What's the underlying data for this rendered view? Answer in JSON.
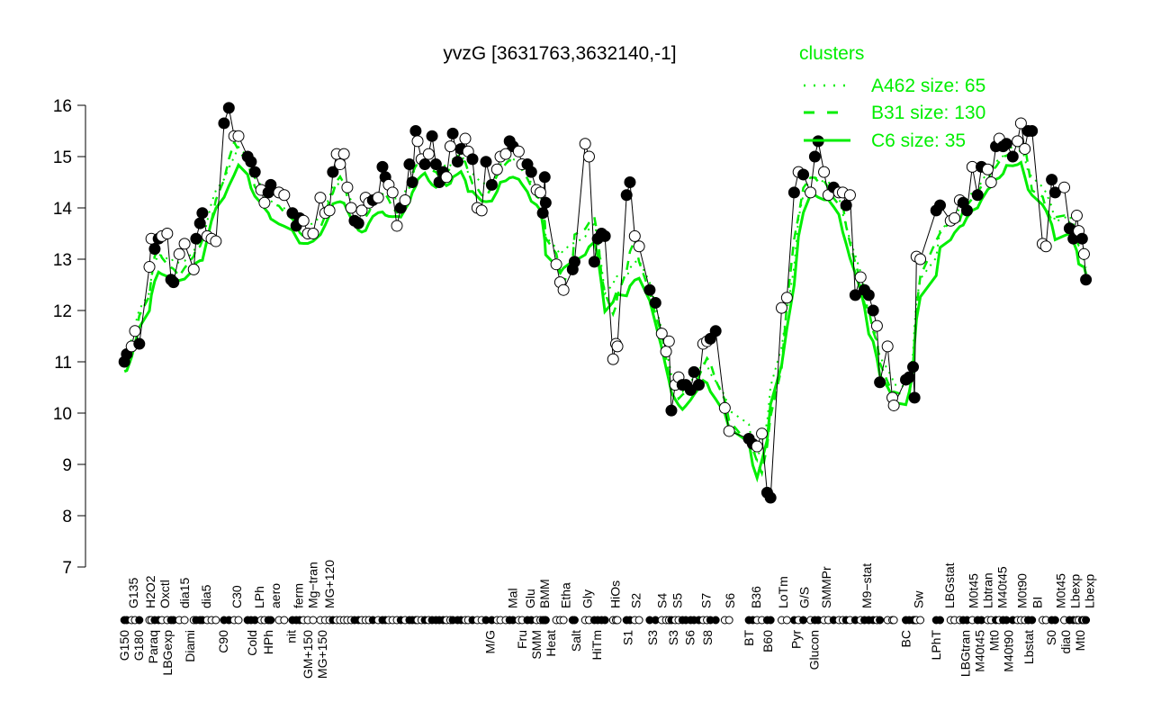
{
  "chart_data": {
    "type": "line",
    "title": "yvzG [3631763,3632140,-1]",
    "xlabel": "",
    "ylabel": "",
    "ylim": [
      7,
      16
    ],
    "xlim": [
      0,
      201
    ],
    "yticks": [
      7,
      8,
      9,
      10,
      11,
      12,
      13,
      14,
      15,
      16
    ],
    "legend": {
      "title": "clusters",
      "placement": "top-right",
      "entries": [
        {
          "name": "A462 size: 65",
          "style": "dotted"
        },
        {
          "name": "B31 size: 130",
          "style": "dashed"
        },
        {
          "name": "C6 size: 35",
          "style": "solid"
        }
      ]
    },
    "colors": {
      "cluster": "#00ee00",
      "point_fill": "#000000",
      "point_open": "#ffffff"
    },
    "points": [
      [
        0.6,
        11.0,
        1
      ],
      [
        1.1,
        11.15,
        1
      ],
      [
        2.1,
        11.3,
        0
      ],
      [
        2.8,
        11.6,
        0
      ],
      [
        3.7,
        11.35,
        1
      ],
      [
        5.8,
        12.85,
        0
      ],
      [
        6.2,
        13.4,
        0
      ],
      [
        6.9,
        13.2,
        1
      ],
      [
        7.7,
        13.4,
        1
      ],
      [
        8.4,
        13.45,
        0
      ],
      [
        9.5,
        13.5,
        0
      ],
      [
        10.3,
        12.6,
        1
      ],
      [
        10.8,
        12.55,
        1
      ],
      [
        12.0,
        13.1,
        0
      ],
      [
        13.1,
        13.3,
        0
      ],
      [
        15.0,
        12.8,
        0
      ],
      [
        15.5,
        13.4,
        1
      ],
      [
        16.3,
        13.7,
        1
      ],
      [
        16.8,
        13.9,
        1
      ],
      [
        17.8,
        13.45,
        0
      ],
      [
        18.7,
        13.4,
        0
      ],
      [
        19.6,
        13.35,
        0
      ],
      [
        21.3,
        15.65,
        1
      ],
      [
        22.3,
        15.95,
        1
      ],
      [
        23.4,
        15.4,
        0
      ],
      [
        24.3,
        15.4,
        0
      ],
      [
        26.2,
        15.0,
        1
      ],
      [
        26.9,
        14.9,
        1
      ],
      [
        27.7,
        14.7,
        1
      ],
      [
        29.0,
        14.35,
        0
      ],
      [
        29.7,
        14.1,
        0
      ],
      [
        30.5,
        14.3,
        1
      ],
      [
        31.0,
        14.45,
        1
      ],
      [
        32.7,
        14.3,
        0
      ],
      [
        33.8,
        14.25,
        0
      ],
      [
        35.5,
        13.9,
        1
      ],
      [
        36.3,
        13.65,
        1
      ],
      [
        37.0,
        13.8,
        1
      ],
      [
        37.8,
        13.75,
        0
      ],
      [
        38.7,
        13.5,
        0
      ],
      [
        39.8,
        13.5,
        0
      ],
      [
        41.3,
        14.2,
        0
      ],
      [
        42.3,
        13.9,
        0
      ],
      [
        43.2,
        13.95,
        0
      ],
      [
        43.9,
        14.7,
        1
      ],
      [
        44.7,
        15.05,
        0
      ],
      [
        45.4,
        14.85,
        0
      ],
      [
        46.2,
        15.05,
        0
      ],
      [
        46.9,
        14.4,
        0
      ],
      [
        47.7,
        14.0,
        0
      ],
      [
        48.4,
        13.75,
        1
      ],
      [
        49.2,
        13.7,
        1
      ],
      [
        49.9,
        13.95,
        0
      ],
      [
        50.7,
        14.2,
        0
      ],
      [
        51.4,
        14.1,
        0
      ],
      [
        52.2,
        14.15,
        1
      ],
      [
        53.3,
        14.2,
        0
      ],
      [
        54.2,
        14.8,
        1
      ],
      [
        54.8,
        14.6,
        1
      ],
      [
        55.5,
        14.45,
        0
      ],
      [
        56.3,
        14.3,
        0
      ],
      [
        57.2,
        13.65,
        0
      ],
      [
        58.0,
        14.0,
        1
      ],
      [
        58.9,
        14.15,
        0
      ],
      [
        59.8,
        14.85,
        1
      ],
      [
        60.4,
        14.5,
        1
      ],
      [
        61.1,
        15.5,
        1
      ],
      [
        61.5,
        15.3,
        0
      ],
      [
        62.3,
        14.95,
        0
      ],
      [
        63.0,
        14.85,
        1
      ],
      [
        63.8,
        15.05,
        0
      ],
      [
        64.5,
        15.4,
        1
      ],
      [
        65.3,
        14.85,
        1
      ],
      [
        66.0,
        14.5,
        1
      ],
      [
        66.8,
        14.7,
        1
      ],
      [
        67.5,
        14.6,
        0
      ],
      [
        68.3,
        15.2,
        0
      ],
      [
        68.8,
        15.45,
        1
      ],
      [
        69.8,
        14.9,
        1
      ],
      [
        70.5,
        15.15,
        1
      ],
      [
        71.4,
        15.35,
        0
      ],
      [
        72.0,
        15.1,
        0
      ],
      [
        72.9,
        14.95,
        1
      ],
      [
        73.9,
        14.0,
        0
      ],
      [
        74.8,
        13.95,
        0
      ],
      [
        75.7,
        14.9,
        1
      ],
      [
        76.9,
        14.45,
        1
      ],
      [
        78.0,
        14.75,
        0
      ],
      [
        78.7,
        15.0,
        0
      ],
      [
        79.8,
        15.05,
        0
      ],
      [
        80.6,
        15.3,
        1
      ],
      [
        81.3,
        15.2,
        1
      ],
      [
        82.5,
        15.1,
        0
      ],
      [
        83.2,
        14.85,
        0
      ],
      [
        84.3,
        14.85,
        1
      ],
      [
        85.1,
        14.7,
        1
      ],
      [
        86.2,
        14.35,
        0
      ],
      [
        87.0,
        14.3,
        0
      ],
      [
        87.5,
        13.9,
        1
      ],
      [
        87.9,
        14.6,
        1
      ],
      [
        88.1,
        14.1,
        1
      ],
      [
        90.3,
        12.9,
        0
      ],
      [
        91.1,
        12.55,
        0
      ],
      [
        91.8,
        12.4,
        0
      ],
      [
        93.7,
        12.8,
        1
      ],
      [
        94.1,
        12.95,
        1
      ],
      [
        96.3,
        15.25,
        0
      ],
      [
        97.1,
        15.0,
        0
      ],
      [
        98.2,
        12.95,
        1
      ],
      [
        98.9,
        13.4,
        1
      ],
      [
        99.7,
        13.5,
        1
      ],
      [
        100.4,
        13.45,
        1
      ],
      [
        102.1,
        11.05,
        0
      ],
      [
        102.7,
        11.35,
        0
      ],
      [
        103.0,
        11.3,
        0
      ],
      [
        104.9,
        14.25,
        1
      ],
      [
        105.6,
        14.5,
        1
      ],
      [
        106.6,
        13.45,
        0
      ],
      [
        107.5,
        13.25,
        0
      ],
      [
        109.7,
        12.4,
        1
      ],
      [
        110.9,
        12.15,
        1
      ],
      [
        112.2,
        11.55,
        0
      ],
      [
        113.1,
        11.2,
        0
      ],
      [
        113.7,
        11.4,
        0
      ],
      [
        114.2,
        10.05,
        1
      ],
      [
        115.0,
        10.55,
        0
      ],
      [
        115.7,
        10.7,
        0
      ],
      [
        116.5,
        10.55,
        1
      ],
      [
        117.2,
        10.55,
        1
      ],
      [
        118.2,
        10.45,
        1
      ],
      [
        118.9,
        10.8,
        1
      ],
      [
        119.9,
        10.55,
        1
      ],
      [
        120.8,
        11.35,
        0
      ],
      [
        121.6,
        11.4,
        0
      ],
      [
        122.3,
        11.45,
        1
      ],
      [
        123.4,
        11.6,
        1
      ],
      [
        125.3,
        10.1,
        0
      ],
      [
        126.2,
        9.65,
        0
      ],
      [
        130.3,
        9.5,
        1
      ],
      [
        131.1,
        9.4,
        1
      ],
      [
        132.0,
        9.35,
        0
      ],
      [
        133.0,
        9.6,
        0
      ],
      [
        134.1,
        8.45,
        1
      ],
      [
        134.8,
        8.35,
        1
      ],
      [
        137.1,
        12.05,
        0
      ],
      [
        138.2,
        12.25,
        0
      ],
      [
        139.7,
        14.3,
        1
      ],
      [
        140.6,
        14.7,
        0
      ],
      [
        141.6,
        14.65,
        1
      ],
      [
        143.1,
        14.3,
        0
      ],
      [
        144.0,
        15.0,
        1
      ],
      [
        144.7,
        15.3,
        1
      ],
      [
        145.9,
        14.7,
        0
      ],
      [
        146.8,
        14.25,
        0
      ],
      [
        147.9,
        14.4,
        1
      ],
      [
        149.0,
        14.3,
        0
      ],
      [
        149.8,
        14.3,
        0
      ],
      [
        150.5,
        14.05,
        1
      ],
      [
        151.3,
        14.25,
        0
      ],
      [
        152.4,
        12.3,
        1
      ],
      [
        153.5,
        12.65,
        0
      ],
      [
        154.3,
        12.4,
        1
      ],
      [
        155.2,
        12.3,
        1
      ],
      [
        156.1,
        12.0,
        1
      ],
      [
        156.9,
        11.7,
        0
      ],
      [
        157.5,
        10.6,
        1
      ],
      [
        159.1,
        11.3,
        0
      ],
      [
        160.1,
        10.3,
        0
      ],
      [
        160.4,
        10.15,
        0
      ],
      [
        162.9,
        10.65,
        1
      ],
      [
        163.6,
        10.7,
        1
      ],
      [
        164.4,
        10.9,
        1
      ],
      [
        164.7,
        10.3,
        1
      ],
      [
        165.1,
        13.05,
        0
      ],
      [
        165.9,
        13.0,
        0
      ],
      [
        169.2,
        13.95,
        1
      ],
      [
        170.0,
        14.05,
        1
      ],
      [
        172.2,
        13.75,
        0
      ],
      [
        173.0,
        13.8,
        0
      ],
      [
        174.1,
        14.15,
        0
      ],
      [
        174.8,
        14.1,
        1
      ],
      [
        175.6,
        13.95,
        1
      ],
      [
        176.7,
        14.8,
        0
      ],
      [
        177.8,
        14.25,
        1
      ],
      [
        178.6,
        14.8,
        1
      ],
      [
        179.9,
        14.75,
        0
      ],
      [
        180.6,
        14.5,
        0
      ],
      [
        181.6,
        15.2,
        1
      ],
      [
        182.3,
        15.35,
        0
      ],
      [
        183.1,
        15.2,
        1
      ],
      [
        183.8,
        15.25,
        1
      ],
      [
        185.1,
        15.0,
        1
      ],
      [
        186.1,
        15.3,
        0
      ],
      [
        186.8,
        15.65,
        0
      ],
      [
        187.6,
        15.15,
        0
      ],
      [
        188.3,
        15.5,
        1
      ],
      [
        189.1,
        15.5,
        1
      ],
      [
        191.3,
        13.3,
        0
      ],
      [
        192.0,
        13.25,
        0
      ],
      [
        193.2,
        14.55,
        1
      ],
      [
        193.9,
        14.3,
        1
      ],
      [
        195.8,
        14.4,
        0
      ],
      [
        196.9,
        13.6,
        1
      ],
      [
        197.7,
        13.4,
        1
      ],
      [
        198.4,
        13.85,
        0
      ],
      [
        198.8,
        13.55,
        0
      ],
      [
        199.5,
        13.4,
        1
      ],
      [
        199.9,
        13.1,
        0
      ],
      [
        200.3,
        12.6,
        1
      ]
    ],
    "x_labels_top": [
      [
        "G135",
        2.4
      ],
      [
        "H2O2",
        6.0
      ],
      [
        "Oxctl",
        8.6
      ],
      [
        "dia15",
        13.1
      ],
      [
        "dia5",
        17.6
      ],
      [
        "C30",
        23.9
      ],
      [
        "LPh",
        28.6
      ],
      [
        "aero",
        32.0
      ],
      [
        "ferm",
        36.7
      ],
      [
        "Mg−tran",
        39.6
      ],
      [
        "MG+120",
        43.2
      ],
      [
        "Mal",
        81.2
      ],
      [
        "Glu",
        84.9
      ],
      [
        "BMM",
        87.7
      ],
      [
        "Etha",
        92.2
      ],
      [
        "Gly",
        96.7
      ],
      [
        "HiOs",
        102.5
      ],
      [
        "S2",
        106.8
      ],
      [
        "S4",
        112.2
      ],
      [
        "S5",
        115.4
      ],
      [
        "S7",
        121.4
      ],
      [
        "S6",
        126.4
      ],
      [
        "B36",
        131.8
      ],
      [
        "LoTm",
        137.4
      ],
      [
        "G/S",
        141.8
      ],
      [
        "SMMPr",
        146.4
      ],
      [
        "M9−stat",
        154.8
      ],
      [
        "Sw",
        165.5
      ],
      [
        "LBGstat",
        172.0
      ],
      [
        "M0t45",
        176.9
      ],
      [
        "Lbtran",
        179.3
      ],
      [
        "M40t45",
        181.9
      ],
      [
        "M0t90",
        187.0
      ],
      [
        "BI",
        190.2
      ],
      [
        "M0t45",
        195.0
      ],
      [
        "Lbexp",
        197.3
      ],
      [
        "Lbexp",
        198.4
      ]
    ],
    "x_labels_bottom": [
      [
        "G150",
        0.6
      ],
      [
        "G180",
        2.4
      ],
      [
        "Paraq",
        6.0
      ],
      [
        "LBGexp",
        8.6
      ],
      [
        "Diami",
        14.2
      ],
      [
        "C90",
        21.1
      ],
      [
        "Cold",
        27.1
      ],
      [
        "HPh",
        30.5
      ],
      [
        "nit",
        35.2
      ],
      [
        "GM+150",
        38.7
      ],
      [
        "MG+150",
        41.3
      ],
      [
        "M/G",
        76.5
      ],
      [
        "Fru",
        83.2
      ],
      [
        "SMM",
        86.0
      ],
      [
        "Heat",
        89.2
      ],
      [
        "Salt",
        94.4
      ],
      [
        "HiTm",
        98.7
      ],
      [
        "S1",
        105.1
      ],
      [
        "S3",
        110.3
      ],
      [
        "S3",
        114.6
      ],
      [
        "S6",
        118.0
      ],
      [
        "S8",
        121.7
      ],
      [
        "BT",
        130.3
      ],
      [
        "B60",
        134.2
      ],
      [
        "Pyr",
        140.1
      ],
      [
        "Glucon",
        143.8
      ],
      [
        "BC",
        162.9
      ],
      [
        "LPhT",
        169.2
      ],
      [
        "LBGtran",
        175.2
      ],
      [
        "M40t45",
        177.8
      ],
      [
        "Mt0",
        181.2
      ],
      [
        "M40t90",
        184.0
      ],
      [
        "Lbstat",
        188.4
      ],
      [
        "S0",
        193.1
      ],
      [
        "dia0",
        195.9
      ],
      [
        "Mt0",
        198.4
      ]
    ]
  }
}
